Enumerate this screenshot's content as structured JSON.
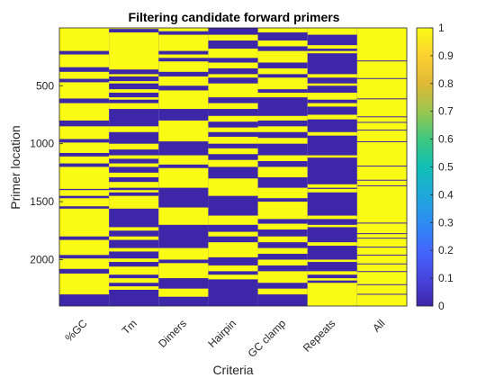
{
  "chart_data": {
    "type": "heatmap",
    "title": "Filtering candidate forward primers",
    "xlabel": "Criteria",
    "ylabel": "Primer location",
    "x_categories": [
      "%GC",
      "Tm",
      "Dimers",
      "Hairpin",
      "GC clamp",
      "Repeats",
      "All"
    ],
    "yticks": [
      500,
      1000,
      1500,
      2000
    ],
    "ylim": [
      1,
      2400
    ],
    "y_direction": "reversed",
    "colorbar": {
      "ticks": [
        "0",
        "0.1",
        "0.2",
        "0.3",
        "0.4",
        "0.5",
        "0.6",
        "0.7",
        "0.8",
        "0.9",
        "1"
      ],
      "range": [
        0,
        1
      ],
      "colormap": "parula"
    },
    "colors": {
      "value_0": "#3e26a8",
      "value_1": "#f9fb15"
    },
    "grid": false,
    "columns_pass_segments": {
      "%GC": [
        [
          1,
          200
        ],
        [
          230,
          340
        ],
        [
          380,
          440
        ],
        [
          470,
          610
        ],
        [
          650,
          800
        ],
        [
          850,
          960
        ],
        [
          990,
          1080
        ],
        [
          1110,
          1170
        ],
        [
          1200,
          1390
        ],
        [
          1400,
          1450
        ],
        [
          1470,
          1540
        ],
        [
          1560,
          1800
        ],
        [
          1830,
          1960
        ],
        [
          1990,
          2080
        ],
        [
          2120,
          2300
        ]
      ],
      "Tm": [
        [
          1,
          10
        ],
        [
          40,
          360
        ],
        [
          400,
          420
        ],
        [
          460,
          480
        ],
        [
          530,
          560
        ],
        [
          600,
          620
        ],
        [
          650,
          700
        ],
        [
          850,
          900
        ],
        [
          1000,
          1050
        ],
        [
          1100,
          1130
        ],
        [
          1170,
          1200
        ],
        [
          1250,
          1290
        ],
        [
          1330,
          1380
        ],
        [
          1400,
          1420
        ],
        [
          1450,
          1560
        ],
        [
          1720,
          1750
        ],
        [
          1800,
          1830
        ],
        [
          1900,
          1930
        ],
        [
          1990,
          2020
        ],
        [
          2060,
          2130
        ],
        [
          2160,
          2200
        ],
        [
          2230,
          2260
        ]
      ],
      "Dimers": [
        [
          1,
          30
        ],
        [
          60,
          200
        ],
        [
          230,
          260
        ],
        [
          290,
          380
        ],
        [
          420,
          500
        ],
        [
          540,
          700
        ],
        [
          800,
          980
        ],
        [
          1100,
          1180
        ],
        [
          1210,
          1380
        ],
        [
          1550,
          1700
        ],
        [
          1900,
          2000
        ],
        [
          2030,
          2160
        ],
        [
          2250,
          2320
        ]
      ],
      "Hairpin": [
        [
          60,
          110
        ],
        [
          180,
          260
        ],
        [
          300,
          350
        ],
        [
          400,
          430
        ],
        [
          480,
          600
        ],
        [
          650,
          700
        ],
        [
          760,
          810
        ],
        [
          860,
          900
        ],
        [
          940,
          1000
        ],
        [
          1040,
          1090
        ],
        [
          1140,
          1200
        ],
        [
          1300,
          1450
        ],
        [
          1620,
          1700
        ],
        [
          1760,
          1800
        ],
        [
          1850,
          1980
        ],
        [
          2050,
          2100
        ],
        [
          2130,
          2170
        ]
      ],
      "GC clamp": [
        [
          1,
          40
        ],
        [
          110,
          160
        ],
        [
          200,
          300
        ],
        [
          350,
          400
        ],
        [
          430,
          530
        ],
        [
          560,
          600
        ],
        [
          760,
          800
        ],
        [
          850,
          900
        ],
        [
          950,
          1000
        ],
        [
          1100,
          1150
        ],
        [
          1200,
          1290
        ],
        [
          1380,
          1470
        ],
        [
          1500,
          1650
        ],
        [
          1690,
          1740
        ],
        [
          1800,
          1850
        ],
        [
          1900,
          1950
        ],
        [
          2000,
          2050
        ],
        [
          2100,
          2200
        ],
        [
          2250,
          2300
        ]
      ],
      "Repeats": [
        [
          1,
          60
        ],
        [
          150,
          180
        ],
        [
          200,
          220
        ],
        [
          400,
          430
        ],
        [
          480,
          500
        ],
        [
          560,
          620
        ],
        [
          650,
          680
        ],
        [
          750,
          790
        ],
        [
          900,
          930
        ],
        [
          1100,
          1120
        ],
        [
          1350,
          1380
        ],
        [
          1390,
          1420
        ],
        [
          1620,
          1650
        ],
        [
          1700,
          1720
        ],
        [
          1850,
          1880
        ],
        [
          2000,
          2020
        ],
        [
          2100,
          2130
        ],
        [
          2160,
          2180
        ],
        [
          2200,
          2400
        ]
      ],
      "All": [
        [
          1,
          2400
        ]
      ]
    },
    "columns_fail_lines": {
      "All": [
        282,
        434,
        609,
        764,
        812,
        879,
        979,
        1189,
        1311,
        1359,
        1681,
        1772,
        1811,
        1888,
        1957,
        2033,
        2099,
        2212,
        2295
      ]
    }
  }
}
